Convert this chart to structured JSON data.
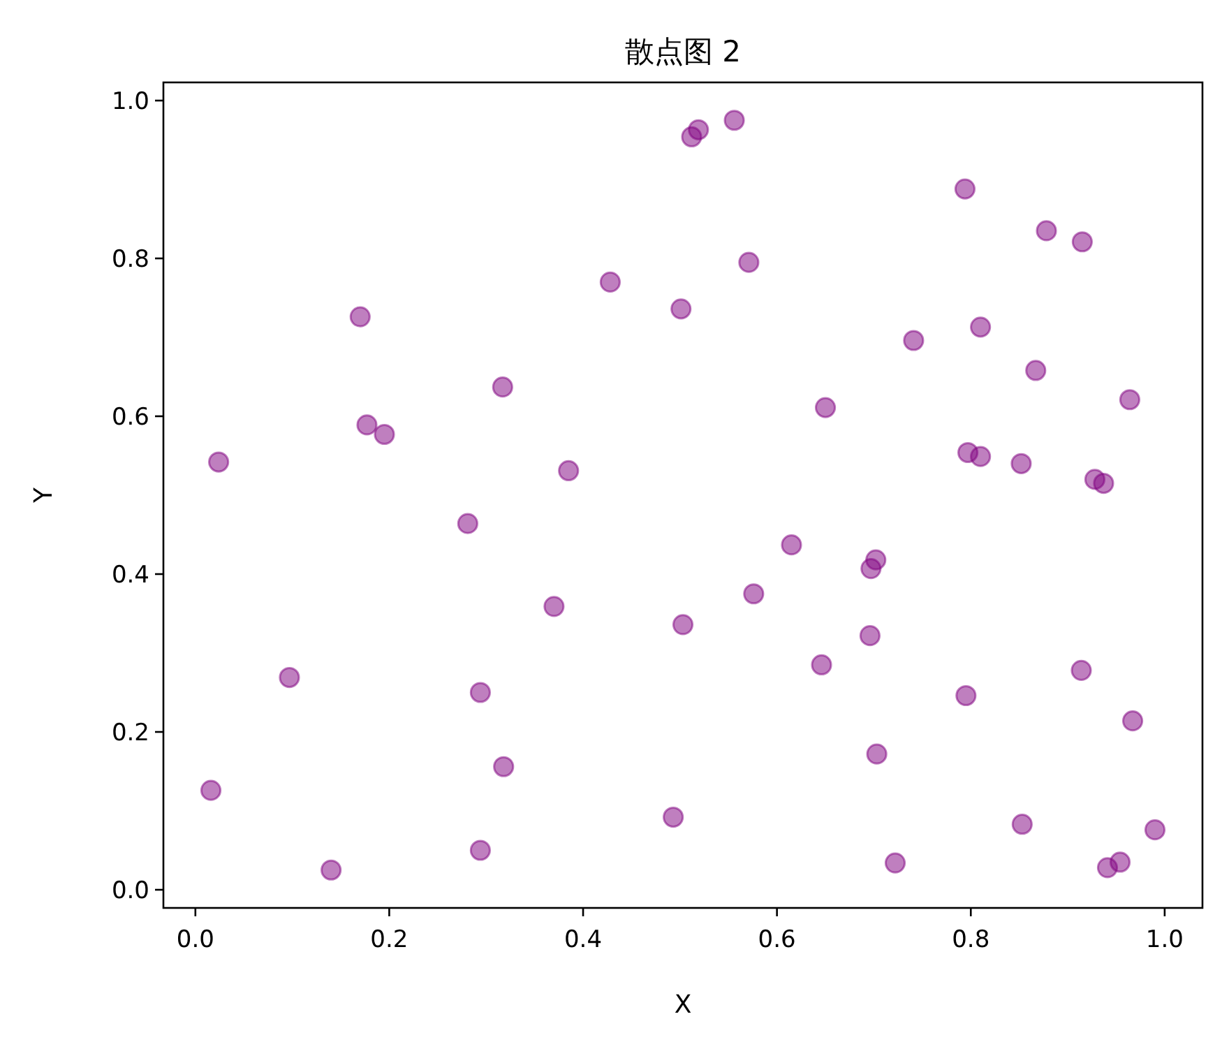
{
  "chart_data": {
    "type": "scatter",
    "title": "散点图 2",
    "xlabel": "X",
    "ylabel": "Y",
    "marker": "circle",
    "grid": false,
    "xlim": [
      -0.033,
      1.039
    ],
    "ylim": [
      -0.023,
      1.023
    ],
    "xticks": [
      {
        "value": 0,
        "label": "0.0"
      },
      {
        "value": 0.2,
        "label": "0.2"
      },
      {
        "value": 0.4,
        "label": "0.4"
      },
      {
        "value": 0.6,
        "label": "0.6"
      },
      {
        "value": 0.8,
        "label": "0.8"
      },
      {
        "value": 1,
        "label": "1.0"
      }
    ],
    "yticks": [
      {
        "value": 0,
        "label": "0.0"
      },
      {
        "value": 0.2,
        "label": "0.2"
      },
      {
        "value": 0.4,
        "label": "0.4"
      },
      {
        "value": 0.6,
        "label": "0.6"
      },
      {
        "value": 0.8,
        "label": "0.8"
      },
      {
        "value": 1,
        "label": "1.0"
      }
    ],
    "series": [
      {
        "color": "#800080",
        "x": [
          0.024,
          0.512,
          0.519,
          0.556,
          0.794,
          0.878,
          0.915,
          0.571,
          0.428,
          0.501,
          0.17,
          0.741,
          0.81,
          0.867,
          0.317,
          0.964,
          0.65,
          0.177,
          0.195,
          0.797,
          0.81,
          0.852,
          0.385,
          0.928,
          0.937,
          0.281,
          0.615,
          0.702,
          0.697,
          0.576,
          0.37,
          0.503,
          0.696,
          0.646,
          0.097,
          0.914,
          0.294,
          0.795,
          0.967,
          0.703,
          0.318,
          0.016,
          0.493,
          0.853,
          0.99,
          0.14,
          0.294,
          0.722,
          0.941,
          0.954
        ],
        "values": [
          0.542,
          0.954,
          0.963,
          0.975,
          0.888,
          0.835,
          0.821,
          0.795,
          0.77,
          0.736,
          0.726,
          0.696,
          0.713,
          0.658,
          0.637,
          0.621,
          0.611,
          0.589,
          0.577,
          0.554,
          0.549,
          0.54,
          0.531,
          0.52,
          0.515,
          0.464,
          0.437,
          0.418,
          0.407,
          0.375,
          0.359,
          0.336,
          0.322,
          0.285,
          0.269,
          0.278,
          0.25,
          0.246,
          0.214,
          0.172,
          0.156,
          0.126,
          0.092,
          0.083,
          0.076,
          0.025,
          0.05,
          0.034,
          0.028,
          0.035
        ]
      }
    ]
  }
}
